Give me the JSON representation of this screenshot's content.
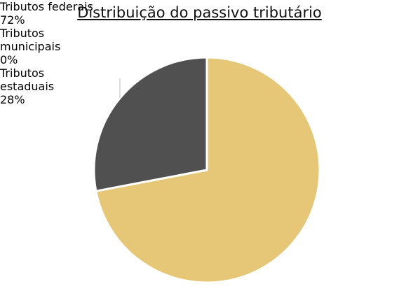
{
  "chart_data": {
    "type": "pie",
    "title": "Distribuição do passivo tributário",
    "categories": [
      "Tributos federais",
      "Tributos municipais",
      "Tributos estaduais"
    ],
    "values": [
      72,
      0,
      28
    ],
    "value_labels": [
      "72%",
      "0%",
      "28%"
    ],
    "colors": [
      "#e6c677",
      "#a5a5a5",
      "#505050"
    ]
  }
}
